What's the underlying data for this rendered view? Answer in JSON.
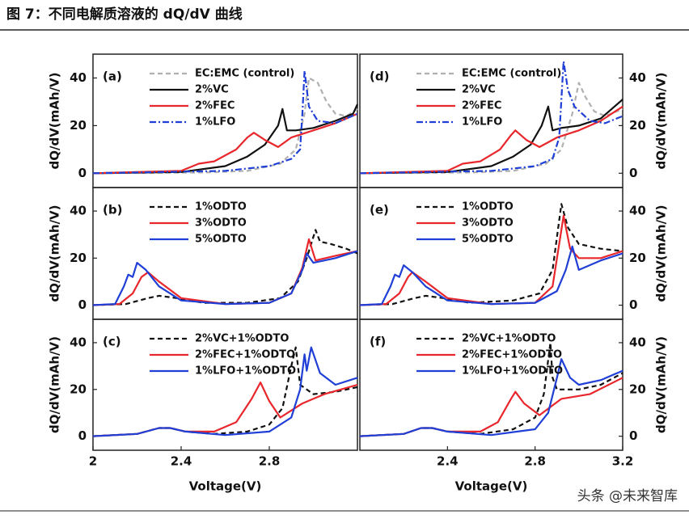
{
  "header": {
    "title": "图 7：不同电解质溶液的 dQ/dV 曲线"
  },
  "footer": {
    "watermark": "头条 @未来智库"
  },
  "chart_data": [
    {
      "type": "line",
      "panel_label": "(a)",
      "ylabel": "dQ/dV(mAh/V)",
      "xlim": [
        2,
        3.2
      ],
      "ylim": [
        -6,
        50
      ],
      "yticks": [
        0,
        20,
        40
      ],
      "series": [
        {
          "name": "EC:EMC (control)",
          "color": "#b0b0b0",
          "dash": "dashed",
          "x": [
            2,
            2.5,
            2.7,
            2.85,
            2.92,
            2.96,
            2.98,
            3.02,
            3.06,
            3.1,
            3.15,
            3.2
          ],
          "values": [
            0,
            0.3,
            1,
            4,
            10,
            25,
            40,
            38,
            30,
            25,
            24,
            27
          ]
        },
        {
          "name": "2%VC",
          "color": "#111111",
          "dash": "solid",
          "x": [
            2,
            2.4,
            2.6,
            2.7,
            2.78,
            2.84,
            2.86,
            2.88,
            2.92,
            3.0,
            3.1,
            3.18,
            3.2
          ],
          "values": [
            0,
            0.5,
            3,
            7,
            12,
            20,
            27,
            18,
            18,
            19,
            22,
            25,
            29
          ]
        },
        {
          "name": "2%FEC",
          "color": "#e8262b",
          "dash": "solid",
          "x": [
            2,
            2.4,
            2.48,
            2.55,
            2.65,
            2.7,
            2.73,
            2.78,
            2.84,
            2.9,
            3.0,
            3.1,
            3.2
          ],
          "values": [
            0,
            1,
            4,
            5,
            10,
            15,
            17,
            14,
            11,
            15,
            18,
            21,
            25
          ]
        },
        {
          "name": "1%LFO",
          "color": "#1f3fd6",
          "dash": "dashdot",
          "x": [
            2,
            2.6,
            2.8,
            2.9,
            2.94,
            2.95,
            2.96,
            2.98,
            3.02,
            3.1,
            3.2
          ],
          "values": [
            0,
            1,
            3,
            6,
            10,
            25,
            43,
            28,
            22,
            21,
            25
          ]
        }
      ]
    },
    {
      "type": "line",
      "panel_label": "(d)",
      "ylabel": "dQ/dV(mAh/V)",
      "xlim": [
        2,
        3.2
      ],
      "ylim": [
        -6,
        50
      ],
      "yticks": [
        0,
        20,
        40
      ],
      "series": [
        {
          "name": "EC:EMC (control)",
          "color": "#b0b0b0",
          "dash": "dashed",
          "x": [
            2,
            2.5,
            2.7,
            2.85,
            2.92,
            2.97,
            3.0,
            3.03,
            3.07,
            3.12,
            3.2
          ],
          "values": [
            0,
            0.3,
            1,
            4,
            10,
            25,
            38,
            32,
            26,
            24,
            27
          ]
        },
        {
          "name": "2%VC",
          "color": "#111111",
          "dash": "solid",
          "x": [
            2,
            2.4,
            2.6,
            2.7,
            2.78,
            2.83,
            2.86,
            2.88,
            2.92,
            3.0,
            3.1,
            3.2
          ],
          "values": [
            0,
            0.5,
            3,
            7,
            12,
            20,
            28,
            18,
            19,
            20,
            23,
            31
          ]
        },
        {
          "name": "2%FEC",
          "color": "#e8262b",
          "dash": "solid",
          "x": [
            2,
            2.4,
            2.47,
            2.55,
            2.64,
            2.69,
            2.71,
            2.76,
            2.82,
            2.9,
            3.0,
            3.1,
            3.2
          ],
          "values": [
            0,
            1,
            4,
            5,
            10,
            16,
            18,
            14,
            11,
            15,
            18,
            22,
            28
          ]
        },
        {
          "name": "1%LFO",
          "color": "#1f3fd6",
          "dash": "dashdot",
          "x": [
            2,
            2.6,
            2.8,
            2.88,
            2.91,
            2.93,
            2.95,
            2.98,
            3.05,
            3.12,
            3.2
          ],
          "values": [
            0,
            1,
            3,
            6,
            15,
            47,
            35,
            28,
            22,
            21,
            24
          ]
        }
      ]
    },
    {
      "type": "line",
      "panel_label": "(b)",
      "ylabel": "dQ/dV(mAh/V)",
      "xlim": [
        2,
        3.2
      ],
      "ylim": [
        -6,
        50
      ],
      "yticks": [
        0,
        20,
        40
      ],
      "series": [
        {
          "name": "1%ODTO",
          "color": "#111111",
          "dash": "dashed",
          "x": [
            2,
            2.15,
            2.25,
            2.3,
            2.38,
            2.5,
            2.7,
            2.85,
            2.93,
            2.97,
            3.01,
            3.03,
            3.08,
            3.15,
            3.2
          ],
          "values": [
            0,
            0.5,
            3,
            4,
            3,
            1,
            1,
            3,
            10,
            20,
            32,
            27,
            26,
            24,
            22
          ]
        },
        {
          "name": "3%ODTO",
          "color": "#e8262b",
          "dash": "solid",
          "x": [
            2,
            2.12,
            2.18,
            2.22,
            2.25,
            2.3,
            2.4,
            2.6,
            2.8,
            2.9,
            2.95,
            2.98,
            3.01,
            3.1,
            3.2
          ],
          "values": [
            0,
            0.5,
            5,
            12,
            14,
            10,
            3,
            0.5,
            1,
            5,
            16,
            28,
            19,
            21,
            23
          ]
        },
        {
          "name": "5%ODTO",
          "color": "#1f3fd6",
          "dash": "solid",
          "x": [
            2,
            2.1,
            2.14,
            2.16,
            2.18,
            2.2,
            2.24,
            2.3,
            2.4,
            2.6,
            2.8,
            2.9,
            2.95,
            2.97,
            3.0,
            3.1,
            3.2
          ],
          "values": [
            0,
            0.5,
            8,
            13,
            12,
            18,
            15,
            8,
            2,
            0.5,
            1,
            5,
            15,
            22,
            18,
            20,
            23
          ]
        }
      ]
    },
    {
      "type": "line",
      "panel_label": "(e)",
      "ylabel": "dQ/dV(mAh/V)",
      "xlim": [
        2,
        3.2
      ],
      "ylim": [
        -6,
        50
      ],
      "yticks": [
        0,
        20,
        40
      ],
      "series": [
        {
          "name": "1%ODTO",
          "color": "#111111",
          "dash": "dashed",
          "x": [
            2,
            2.15,
            2.25,
            2.3,
            2.38,
            2.5,
            2.7,
            2.82,
            2.88,
            2.92,
            2.95,
            3.0,
            3.1,
            3.2
          ],
          "values": [
            0,
            0.5,
            3,
            4,
            3,
            1,
            2,
            5,
            15,
            43,
            33,
            26,
            24,
            23
          ]
        },
        {
          "name": "3%ODTO",
          "color": "#e8262b",
          "dash": "solid",
          "x": [
            2,
            2.12,
            2.18,
            2.22,
            2.24,
            2.3,
            2.4,
            2.6,
            2.8,
            2.88,
            2.93,
            2.96,
            3.0,
            3.1,
            3.2
          ],
          "values": [
            0,
            0.5,
            5,
            12,
            14,
            10,
            3,
            0.5,
            1,
            8,
            38,
            24,
            20,
            20,
            23
          ]
        },
        {
          "name": "5%ODTO",
          "color": "#1f3fd6",
          "dash": "solid",
          "x": [
            2,
            2.1,
            2.14,
            2.16,
            2.18,
            2.2,
            2.24,
            2.3,
            2.4,
            2.6,
            2.8,
            2.9,
            2.94,
            2.97,
            3.0,
            3.1,
            3.2
          ],
          "values": [
            0,
            0.5,
            8,
            13,
            12,
            17,
            14,
            8,
            2,
            0.5,
            1,
            6,
            15,
            25,
            15,
            19,
            22
          ]
        }
      ]
    },
    {
      "type": "line",
      "panel_label": "(c)",
      "ylabel": "dQ/dV(mAh/V)",
      "xlabel": "Voltage(V)",
      "xlim": [
        2,
        3.2
      ],
      "ylim": [
        -6,
        50
      ],
      "yticks": [
        0,
        20,
        40
      ],
      "xticks": [
        2,
        2.4,
        2.8
      ],
      "series": [
        {
          "name": "2%VC+1%ODTO",
          "color": "#111111",
          "dash": "dashed",
          "x": [
            2,
            2.2,
            2.3,
            2.35,
            2.42,
            2.55,
            2.7,
            2.8,
            2.86,
            2.9,
            2.92,
            2.94,
            3.0,
            3.1,
            3.2
          ],
          "values": [
            0,
            1,
            3.5,
            3.5,
            2,
            1,
            2,
            5,
            12,
            30,
            38,
            22,
            18,
            19,
            21
          ]
        },
        {
          "name": "2%FEC+1%ODTO",
          "color": "#e8262b",
          "dash": "solid",
          "x": [
            2,
            2.2,
            2.3,
            2.35,
            2.42,
            2.55,
            2.65,
            2.72,
            2.76,
            2.8,
            2.85,
            2.95,
            3.05,
            3.2
          ],
          "values": [
            0,
            1,
            3.5,
            3.5,
            2,
            2,
            6,
            16,
            23,
            15,
            8,
            14,
            18,
            22
          ]
        },
        {
          "name": "1%LFO+1%ODTO",
          "color": "#1f3fd6",
          "dash": "solid",
          "x": [
            2,
            2.2,
            2.3,
            2.35,
            2.42,
            2.6,
            2.8,
            2.9,
            2.94,
            2.96,
            2.97,
            2.99,
            3.03,
            3.1,
            3.2
          ],
          "values": [
            0,
            1,
            3.5,
            3.5,
            2,
            0.5,
            2,
            8,
            20,
            35,
            28,
            38,
            27,
            22,
            25
          ]
        }
      ]
    },
    {
      "type": "line",
      "panel_label": "(f)",
      "ylabel": "dQ/dV(mAh/V)",
      "xlabel": "Voltage(V)",
      "xlim": [
        2,
        3.2
      ],
      "ylim": [
        -6,
        50
      ],
      "yticks": [
        0,
        20,
        40
      ],
      "xticks": [
        2.4,
        2.8,
        3.2
      ],
      "series": [
        {
          "name": "2%VC+1%ODTO",
          "color": "#111111",
          "dash": "dashed",
          "x": [
            2,
            2.2,
            2.28,
            2.33,
            2.4,
            2.55,
            2.7,
            2.8,
            2.84,
            2.87,
            2.88,
            2.9,
            3.0,
            3.1,
            3.2
          ],
          "values": [
            0,
            1,
            3.5,
            3.5,
            2,
            1,
            3,
            8,
            18,
            40,
            25,
            20,
            20,
            22,
            27
          ]
        },
        {
          "name": "2%FEC+1%ODTO",
          "color": "#e8262b",
          "dash": "solid",
          "x": [
            2,
            2.2,
            2.28,
            2.33,
            2.4,
            2.55,
            2.63,
            2.69,
            2.71,
            2.75,
            2.82,
            2.92,
            3.05,
            3.2
          ],
          "values": [
            0,
            1,
            3.5,
            3.5,
            2,
            2,
            6,
            16,
            19,
            14,
            9,
            16,
            18,
            25
          ]
        },
        {
          "name": "1%LFO+1%ODTO",
          "color": "#1f3fd6",
          "dash": "solid",
          "x": [
            2,
            2.2,
            2.28,
            2.33,
            2.4,
            2.6,
            2.8,
            2.86,
            2.9,
            2.92,
            2.96,
            3.0,
            3.1,
            3.2
          ],
          "values": [
            0,
            1,
            3.5,
            3.5,
            2,
            0.5,
            3,
            10,
            25,
            33,
            25,
            22,
            24,
            28
          ]
        }
      ]
    }
  ]
}
